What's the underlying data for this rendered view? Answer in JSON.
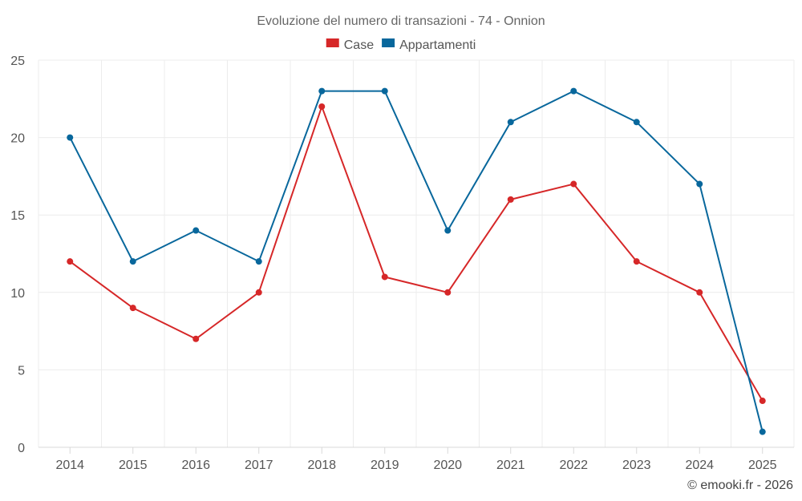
{
  "chart_data": {
    "type": "line",
    "title": "Evoluzione del numero di transazioni - 74 - Onnion",
    "xlabel": "",
    "ylabel": "",
    "categories": [
      "2014",
      "2015",
      "2016",
      "2017",
      "2018",
      "2019",
      "2020",
      "2021",
      "2022",
      "2023",
      "2024",
      "2025"
    ],
    "ylim": [
      0,
      25
    ],
    "yticks": [
      0,
      5,
      10,
      15,
      20,
      25
    ],
    "grid": true,
    "legend_position": "top-center",
    "series": [
      {
        "name": "Case",
        "color": "#d62728",
        "values": [
          12,
          9,
          7,
          10,
          22,
          11,
          10,
          16,
          17,
          12,
          10,
          3
        ]
      },
      {
        "name": "Appartamenti",
        "color": "#08679c",
        "values": [
          20,
          12,
          14,
          12,
          23,
          23,
          14,
          21,
          23,
          21,
          17,
          1
        ]
      }
    ],
    "credit": "© emooki.fr - 2026"
  }
}
